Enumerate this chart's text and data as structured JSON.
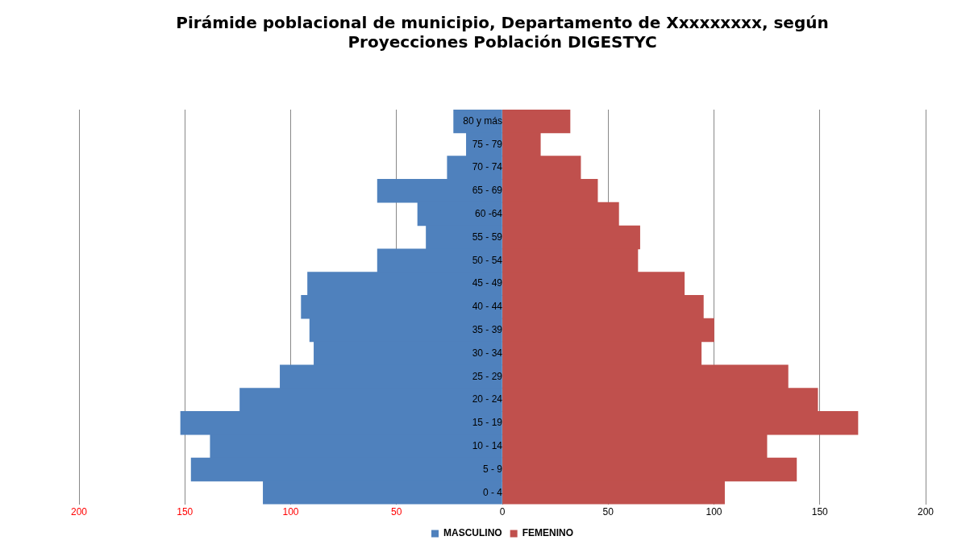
{
  "chart_data": {
    "type": "bar",
    "orientation": "horizontal",
    "stacked": true,
    "title": "Pirámide poblacional de municipio, Departamento de Xxxxxxxxx, según\nProyecciones Población DIGESTYC",
    "categories": [
      "80 y más",
      "75 - 79",
      "70 - 74",
      "65 - 69",
      "60 -64",
      "55 - 59",
      "50 - 54",
      "45 - 49",
      "40 - 44",
      "35 - 39",
      "30 - 34",
      "25 - 29",
      "20 - 24",
      "15 - 19",
      "10 - 14",
      "5 - 9",
      "0 - 4"
    ],
    "series": [
      {
        "name": "MASCULINO",
        "color": "#4f81bd",
        "values": [
          -23,
          -17,
          -26,
          -59,
          -40,
          -36,
          -59,
          -92,
          -95,
          -91,
          -89,
          -105,
          -124,
          -152,
          -138,
          -147,
          -113
        ]
      },
      {
        "name": "FEMENINO",
        "color": "#c0504d",
        "values": [
          32,
          18,
          37,
          45,
          55,
          65,
          64,
          86,
          95,
          100,
          94,
          135,
          149,
          168,
          125,
          139,
          105
        ]
      }
    ],
    "xlim": [
      -200,
      200
    ],
    "xticks": [
      {
        "value": -200,
        "label": "200"
      },
      {
        "value": -150,
        "label": "150"
      },
      {
        "value": -100,
        "label": "100"
      },
      {
        "value": -50,
        "label": "50"
      },
      0,
      50,
      100,
      150,
      200
    ],
    "grid": "x",
    "legend": "bottom"
  }
}
